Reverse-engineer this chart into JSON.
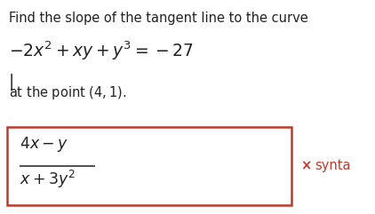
{
  "title_text": "Find the slope of the tangent line to the curve",
  "equation": "$-2x^2 + xy + y^3 = -27$",
  "point_text": "at the point $(4, 1)$.",
  "answer_numerator": "$4x - y$",
  "answer_denominator": "$x + 3y^2$",
  "x_mark_text": "×",
  "synta_text": "synta",
  "bg_color": "#ffffff",
  "box_edge_color": "#c0392b",
  "text_color": "#222222",
  "red_color": "#c0392b",
  "title_fontsize": 10.5,
  "eq_fontsize": 13.5,
  "point_fontsize": 10.5,
  "answer_fontsize": 12.5,
  "synta_fontsize": 10.5,
  "fig_width": 4.22,
  "fig_height": 2.41,
  "dpi": 100
}
